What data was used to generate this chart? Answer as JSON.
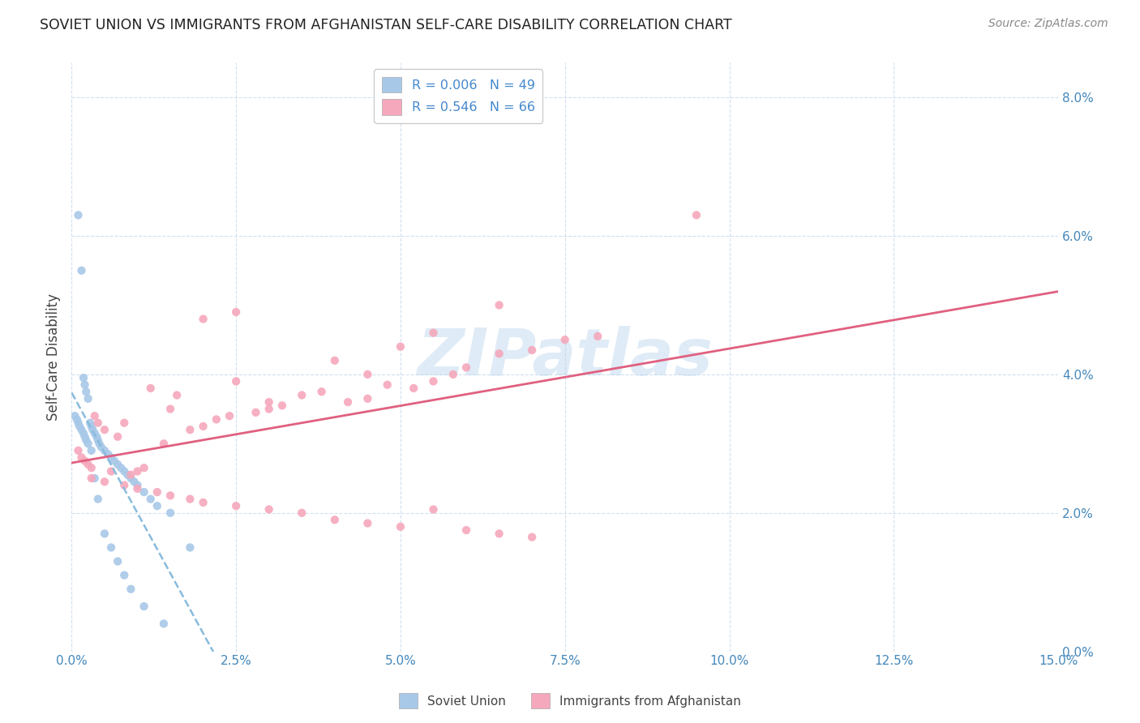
{
  "title": "SOVIET UNION VS IMMIGRANTS FROM AFGHANISTAN SELF-CARE DISABILITY CORRELATION CHART",
  "source": "Source: ZipAtlas.com",
  "ylabel": "Self-Care Disability",
  "xlim": [
    0.0,
    15.0
  ],
  "ylim": [
    0.0,
    8.5
  ],
  "yticks": [
    0.0,
    2.0,
    4.0,
    6.0,
    8.0
  ],
  "xticks": [
    0.0,
    2.5,
    5.0,
    7.5,
    10.0,
    12.5,
    15.0
  ],
  "soviet_R": "0.006",
  "soviet_N": "49",
  "afghan_R": "0.546",
  "afghan_N": "66",
  "soviet_color": "#a8c8e8",
  "afghan_color": "#f5a8bc",
  "soviet_line_color": "#88bbdd",
  "afghan_line_color": "#e06080",
  "legend_label_soviet": "Soviet Union",
  "legend_label_afghan": "Immigrants from Afghanistan",
  "watermark": "ZIPatlas",
  "soviet_x": [
    0.1,
    0.15,
    0.18,
    0.2,
    0.22,
    0.25,
    0.28,
    0.3,
    0.32,
    0.35,
    0.38,
    0.4,
    0.42,
    0.45,
    0.5,
    0.55,
    0.6,
    0.65,
    0.7,
    0.75,
    0.8,
    0.85,
    0.9,
    0.95,
    1.0,
    1.1,
    1.2,
    1.3,
    1.5,
    1.8,
    0.05,
    0.08,
    0.1,
    0.12,
    0.15,
    0.18,
    0.2,
    0.22,
    0.25,
    0.3,
    0.35,
    0.4,
    0.5,
    0.6,
    0.7,
    0.8,
    0.9,
    1.1,
    1.4
  ],
  "soviet_y": [
    6.3,
    5.5,
    3.95,
    3.85,
    3.75,
    3.65,
    3.3,
    3.25,
    3.2,
    3.15,
    3.1,
    3.05,
    3.0,
    2.95,
    2.9,
    2.85,
    2.8,
    2.75,
    2.7,
    2.65,
    2.6,
    2.55,
    2.5,
    2.45,
    2.4,
    2.3,
    2.2,
    2.1,
    2.0,
    1.5,
    3.4,
    3.35,
    3.3,
    3.25,
    3.2,
    3.15,
    3.1,
    3.05,
    3.0,
    2.9,
    2.5,
    2.2,
    1.7,
    1.5,
    1.3,
    1.1,
    0.9,
    0.65,
    0.4
  ],
  "afghan_x": [
    0.1,
    0.15,
    0.2,
    0.25,
    0.3,
    0.35,
    0.4,
    0.5,
    0.6,
    0.7,
    0.8,
    0.9,
    1.0,
    1.1,
    1.2,
    1.4,
    1.5,
    1.6,
    1.8,
    2.0,
    2.2,
    2.4,
    2.5,
    2.8,
    3.0,
    3.2,
    3.5,
    3.8,
    4.0,
    4.2,
    4.5,
    4.8,
    5.0,
    5.2,
    5.5,
    5.8,
    6.0,
    6.5,
    7.0,
    7.5,
    8.0,
    9.5,
    0.3,
    0.5,
    0.8,
    1.0,
    1.3,
    1.5,
    1.8,
    2.0,
    2.5,
    3.0,
    3.5,
    4.0,
    4.5,
    5.0,
    5.5,
    6.0,
    6.5,
    7.0,
    2.0,
    2.5,
    3.0,
    4.5,
    5.5,
    6.5
  ],
  "afghan_y": [
    2.9,
    2.8,
    2.75,
    2.7,
    2.65,
    3.4,
    3.3,
    3.2,
    2.6,
    3.1,
    3.3,
    2.55,
    2.6,
    2.65,
    3.8,
    3.0,
    3.5,
    3.7,
    3.2,
    3.25,
    3.35,
    3.4,
    3.9,
    3.45,
    3.5,
    3.55,
    3.7,
    3.75,
    4.2,
    3.6,
    3.65,
    3.85,
    4.4,
    3.8,
    3.9,
    4.0,
    4.1,
    4.3,
    4.35,
    4.5,
    4.55,
    6.3,
    2.5,
    2.45,
    2.4,
    2.35,
    2.3,
    2.25,
    2.2,
    2.15,
    2.1,
    2.05,
    2.0,
    1.9,
    1.85,
    1.8,
    2.05,
    1.75,
    1.7,
    1.65,
    4.8,
    4.9,
    3.6,
    4.0,
    4.6,
    5.0
  ]
}
